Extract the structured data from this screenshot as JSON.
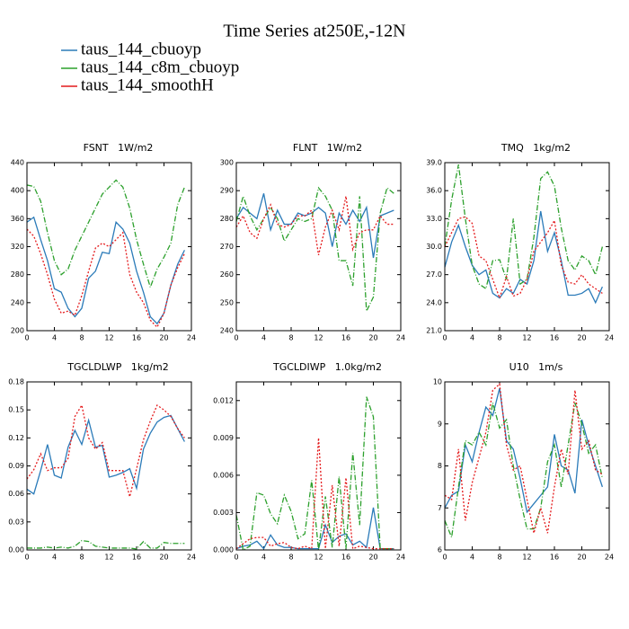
{
  "title": "Time Series at250E,-12N",
  "chart_data": [
    {
      "type": "line",
      "title": "FSNT   1W/m2",
      "x": [
        0,
        1,
        2,
        3,
        4,
        5,
        6,
        7,
        8,
        9,
        10,
        11,
        12,
        13,
        14,
        15,
        16,
        17,
        18,
        19,
        20,
        21,
        22,
        23
      ],
      "xlim": [
        0,
        24
      ],
      "xticks": [
        0,
        4,
        8,
        12,
        16,
        20,
        24
      ],
      "ylim": [
        200,
        440
      ],
      "yticks": [
        200,
        240,
        280,
        320,
        360,
        400,
        440
      ],
      "series": [
        {
          "name": "taus_144_cbuoyp",
          "color": "#2b7bb9",
          "dash": "solid",
          "values": [
            355,
            362,
            330,
            300,
            260,
            255,
            232,
            220,
            232,
            275,
            285,
            312,
            310,
            355,
            345,
            325,
            285,
            255,
            220,
            210,
            225,
            265,
            295,
            315
          ]
        },
        {
          "name": "taus_144_c8m_cbuoyp",
          "color": "#2ca02c",
          "dash": "dashdot",
          "values": [
            408,
            406,
            385,
            340,
            300,
            280,
            288,
            315,
            335,
            355,
            375,
            395,
            405,
            415,
            405,
            375,
            330,
            295,
            262,
            288,
            305,
            325,
            380,
            405
          ]
        },
        {
          "name": "taus_144_smoothH",
          "color": "#e41a1c",
          "dash": "dotted",
          "values": [
            345,
            335,
            310,
            280,
            245,
            225,
            228,
            222,
            250,
            285,
            318,
            325,
            320,
            330,
            340,
            280,
            255,
            240,
            215,
            205,
            225,
            265,
            290,
            310
          ]
        }
      ]
    },
    {
      "type": "line",
      "title": "FLNT   1W/m2",
      "x": [
        0,
        1,
        2,
        3,
        4,
        5,
        6,
        7,
        8,
        9,
        10,
        11,
        12,
        13,
        14,
        15,
        16,
        17,
        18,
        19,
        20,
        21,
        22,
        23
      ],
      "xlim": [
        0,
        24
      ],
      "xticks": [
        0,
        4,
        8,
        12,
        16,
        20,
        24
      ],
      "ylim": [
        240,
        300
      ],
      "yticks": [
        240,
        250,
        260,
        270,
        280,
        290,
        300
      ],
      "series": [
        {
          "name": "taus_144_cbuoyp",
          "color": "#2b7bb9",
          "dash": "solid",
          "values": [
            280,
            284,
            282,
            280,
            289,
            276,
            283,
            278,
            278,
            282,
            281,
            282,
            284,
            282,
            270,
            282,
            278,
            283,
            279,
            284,
            266,
            281,
            282,
            283
          ]
        },
        {
          "name": "taus_144_c8m_cbuoyp",
          "color": "#2ca02c",
          "dash": "dashdot",
          "values": [
            279,
            288,
            281,
            276,
            280,
            284,
            280,
            272,
            276,
            280,
            279,
            280,
            291,
            288,
            283,
            265,
            265,
            256,
            288,
            247,
            252,
            282,
            291,
            289
          ]
        },
        {
          "name": "taus_144_smoothH",
          "color": "#e41a1c",
          "dash": "dotted",
          "values": [
            277,
            281,
            275,
            273,
            280,
            285,
            278,
            277,
            278,
            281,
            281,
            283,
            267,
            277,
            283,
            276,
            288,
            269,
            275,
            276,
            276,
            281,
            278,
            278
          ]
        }
      ]
    },
    {
      "type": "line",
      "title": "TMQ   1kg/m2",
      "x": [
        0,
        1,
        2,
        3,
        4,
        5,
        6,
        7,
        8,
        9,
        10,
        11,
        12,
        13,
        14,
        15,
        16,
        17,
        18,
        19,
        20,
        21,
        22,
        23
      ],
      "xlim": [
        0,
        24
      ],
      "xticks": [
        0,
        4,
        8,
        12,
        16,
        20,
        24
      ],
      "ylim": [
        21,
        39
      ],
      "yticks": [
        {
          "value": 21,
          "label": "21.0"
        },
        {
          "value": 24,
          "label": "24.0"
        },
        {
          "value": 27,
          "label": "27.0"
        },
        {
          "value": 30,
          "label": "30.0"
        },
        {
          "value": 33,
          "label": "33.0"
        },
        {
          "value": 36,
          "label": "36.0"
        },
        {
          "value": 39,
          "label": "39.0"
        }
      ],
      "series": [
        {
          "name": "taus_144_cbuoyp",
          "color": "#2b7bb9",
          "dash": "solid",
          "values": [
            27.8,
            30.5,
            32.3,
            30,
            28,
            27,
            27.5,
            25,
            24.5,
            25.5,
            25,
            26.5,
            26,
            28.5,
            33.8,
            29.5,
            31.5,
            28.5,
            24.8,
            24.8,
            25,
            25.5,
            24,
            25.7
          ]
        },
        {
          "name": "taus_144_c8m_cbuoyp",
          "color": "#2ca02c",
          "dash": "dashdot",
          "values": [
            30,
            35,
            38.8,
            33,
            28,
            26,
            25.5,
            28.5,
            28.6,
            26.5,
            33,
            26,
            26.5,
            31,
            37.3,
            38,
            36.5,
            32,
            28.5,
            27.5,
            29,
            28.5,
            27,
            30
          ]
        },
        {
          "name": "taus_144_smoothH",
          "color": "#e41a1c",
          "dash": "dotted",
          "values": [
            30,
            31.5,
            33,
            33.2,
            32.5,
            29,
            28.5,
            26.5,
            24.5,
            26.8,
            24.7,
            25,
            26.5,
            29.5,
            30.5,
            31.5,
            32.8,
            28,
            26.2,
            26,
            27,
            26,
            25.5,
            25
          ]
        }
      ]
    },
    {
      "type": "line",
      "title": "TGCLDLWP   1kg/m2",
      "x": [
        0,
        1,
        2,
        3,
        4,
        5,
        6,
        7,
        8,
        9,
        10,
        11,
        12,
        13,
        14,
        15,
        16,
        17,
        18,
        19,
        20,
        21,
        22,
        23
      ],
      "xlim": [
        0,
        24
      ],
      "xticks": [
        0,
        4,
        8,
        12,
        16,
        20,
        24
      ],
      "ylim": [
        0,
        0.18
      ],
      "yticks": [
        {
          "value": 0,
          "label": "0.00"
        },
        0.03,
        0.06,
        0.09,
        0.12,
        0.15,
        0.18
      ],
      "series": [
        {
          "name": "taus_144_cbuoyp",
          "color": "#2b7bb9",
          "dash": "solid",
          "values": [
            0.065,
            0.06,
            0.085,
            0.113,
            0.08,
            0.077,
            0.11,
            0.128,
            0.113,
            0.139,
            0.11,
            0.112,
            0.078,
            0.08,
            0.083,
            0.087,
            0.066,
            0.108,
            0.125,
            0.137,
            0.142,
            0.144,
            0.13,
            0.116
          ]
        },
        {
          "name": "taus_144_c8m_cbuoyp",
          "color": "#2ca02c",
          "dash": "dashdot",
          "values": [
            0.002,
            0.002,
            0.002,
            0.003,
            0.002,
            0.003,
            0.002,
            0.004,
            0.01,
            0.009,
            0.004,
            0.003,
            0.002,
            0.002,
            0.002,
            0.002,
            0.001,
            0.009,
            0.002,
            0.002,
            0.008,
            0.007,
            0.007,
            0.007
          ]
        },
        {
          "name": "taus_144_smoothH",
          "color": "#e41a1c",
          "dash": "dotted",
          "values": [
            0.076,
            0.086,
            0.103,
            0.085,
            0.088,
            0.088,
            0.098,
            0.143,
            0.155,
            0.12,
            0.108,
            0.115,
            0.085,
            0.085,
            0.085,
            0.057,
            0.087,
            0.118,
            0.138,
            0.155,
            0.15,
            0.143,
            0.13,
            0.12
          ]
        }
      ]
    },
    {
      "type": "line",
      "title": "TGCLDIWP   1.0kg/m2",
      "x": [
        0,
        1,
        2,
        3,
        4,
        5,
        6,
        7,
        8,
        9,
        10,
        11,
        12,
        13,
        14,
        15,
        16,
        17,
        18,
        19,
        20,
        21,
        22,
        23
      ],
      "xlim": [
        0,
        24
      ],
      "xticks": [
        0,
        4,
        8,
        12,
        16,
        20,
        24
      ],
      "ylim": [
        0,
        0.0135
      ],
      "yticks": [
        {
          "value": 0,
          "label": "0.000"
        },
        0.003,
        0.006,
        0.009,
        0.012
      ],
      "series": [
        {
          "name": "taus_144_cbuoyp",
          "color": "#2b7bb9",
          "dash": "solid",
          "values": [
            0.0001,
            0.0003,
            0.0004,
            0.0007,
            0.0001,
            0.0012,
            0.0004,
            0.0002,
            0.0002,
            0.0001,
            0.0001,
            0.0001,
            0.0001,
            0.002,
            0.0006,
            0.0011,
            0.0013,
            0.0004,
            0.0007,
            0.0002,
            0.0034,
            0.0001,
            0.0001,
            0.0001
          ]
        },
        {
          "name": "taus_144_c8m_cbuoyp",
          "color": "#2ca02c",
          "dash": "dashdot",
          "values": [
            0.0028,
            0,
            0.0003,
            0.0046,
            0.0044,
            0.0029,
            0.0021,
            0.0044,
            0.0031,
            0.0009,
            0.0013,
            0.0056,
            0,
            0.0043,
            0.0002,
            0.0059,
            0.0001,
            0.0078,
            0.002,
            0.0123,
            0.0107,
            0.0001,
            0.0001,
            0.0001
          ]
        },
        {
          "name": "taus_144_smoothH",
          "color": "#e41a1c",
          "dash": "dotted",
          "values": [
            0.0001,
            0.0005,
            0.0009,
            0.001,
            0.001,
            0.0003,
            0.0005,
            0.0006,
            0.0002,
            0.0001,
            0.0003,
            0.0001,
            0.009,
            0.0001,
            0.0052,
            0.0003,
            0.0058,
            0.0001,
            0.0003,
            0.0002,
            0.0001,
            0.0001,
            0.0001,
            0.0001
          ]
        }
      ]
    },
    {
      "type": "line",
      "title": "U10   1m/s",
      "x": [
        0,
        1,
        2,
        3,
        4,
        5,
        6,
        7,
        8,
        9,
        10,
        11,
        12,
        13,
        14,
        15,
        16,
        17,
        18,
        19,
        20,
        21,
        22,
        23
      ],
      "xlim": [
        0,
        24
      ],
      "xticks": [
        0,
        4,
        8,
        12,
        16,
        20,
        24
      ],
      "ylim": [
        6,
        10
      ],
      "yticks": [
        6,
        7,
        8,
        9,
        10
      ],
      "series": [
        {
          "name": "taus_144_cbuoyp",
          "color": "#2b7bb9",
          "dash": "solid",
          "values": [
            7,
            7.3,
            7.4,
            8.5,
            8.1,
            8.8,
            9.4,
            9.2,
            9.85,
            8.6,
            8.4,
            7.7,
            6.9,
            7.1,
            7.3,
            7.5,
            8.75,
            8,
            7.9,
            7.35,
            9.1,
            8.5,
            8,
            7.5
          ]
        },
        {
          "name": "taus_144_c8m_cbuoyp",
          "color": "#2ca02c",
          "dash": "dashdot",
          "values": [
            6.7,
            6.3,
            7.5,
            8.6,
            8.5,
            8.8,
            8.5,
            9.5,
            8.9,
            9.1,
            8,
            7.2,
            6.5,
            6.5,
            7,
            8.1,
            8.5,
            7.5,
            8.5,
            9.5,
            9,
            8.3,
            8.5,
            7.7
          ]
        },
        {
          "name": "taus_144_smoothH",
          "color": "#e41a1c",
          "dash": "dotted",
          "values": [
            7.3,
            7.2,
            8.4,
            6.7,
            7.6,
            8.2,
            8.8,
            9.8,
            9.95,
            8.5,
            7.9,
            8,
            7.2,
            6.4,
            7,
            6.4,
            7.5,
            8.4,
            7.8,
            9.8,
            8.4,
            8.6,
            7.9,
            7.8
          ]
        }
      ]
    }
  ]
}
